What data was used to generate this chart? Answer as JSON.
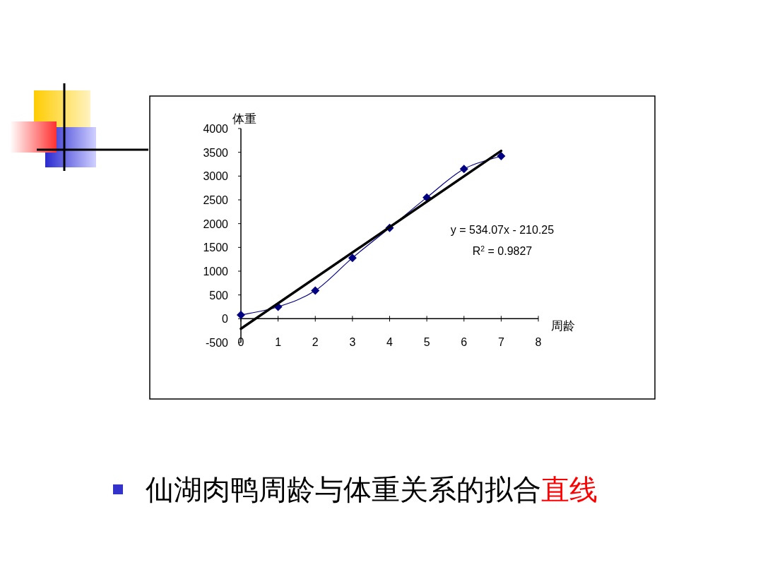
{
  "chart_data": {
    "type": "line",
    "ylabel": "体重",
    "xlabel": "周龄",
    "xlim": [
      0,
      8
    ],
    "xticks": [
      0,
      1,
      2,
      3,
      4,
      5,
      6,
      7,
      8
    ],
    "ylim": [
      -500,
      4000
    ],
    "yticks": [
      -500,
      0,
      500,
      1000,
      1500,
      2000,
      2500,
      3000,
      3500,
      4000
    ],
    "grid": false,
    "line_style": "solid",
    "series": [
      {
        "color": "#000080",
        "marker": "diamond",
        "x": [
          0,
          1,
          2,
          3,
          4,
          5,
          6,
          7
        ],
        "values": [
          80,
          250,
          590,
          1280,
          1910,
          2550,
          3150,
          3420
        ]
      },
      {
        "color": "#000000",
        "marker": "none",
        "x": [
          0,
          7
        ],
        "values": [
          -210,
          3530
        ]
      }
    ],
    "annotations": [
      "y = 534.07x - 210.25",
      "R$^{2}$ = 0.9827",
      "仙湖肉鸭周龄与体重关系的拟合",
      "直线"
    ]
  }
}
